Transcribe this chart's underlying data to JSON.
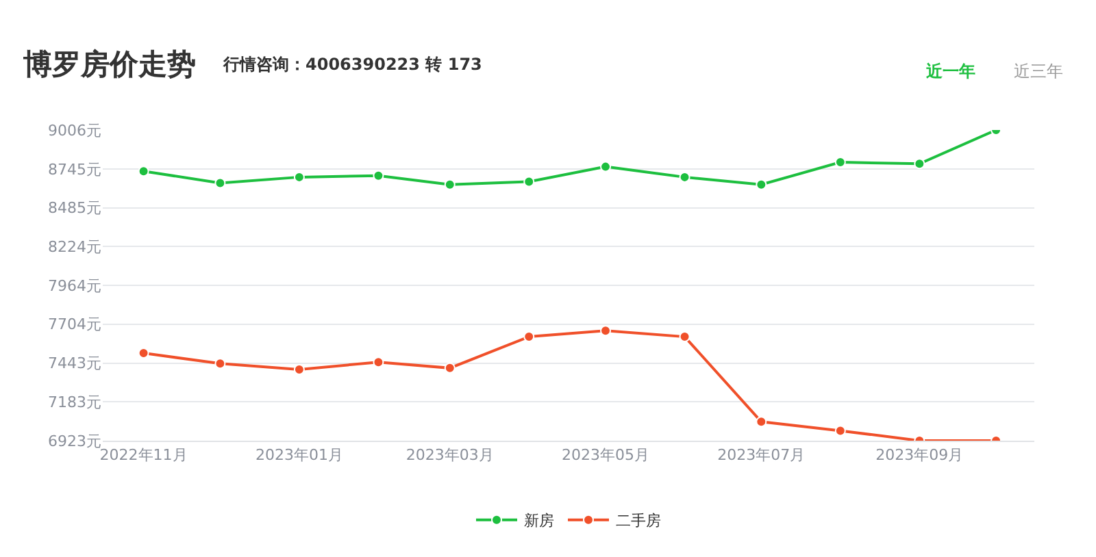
{
  "chart_data": {
    "type": "line",
    "title": "博罗房价走势",
    "subtitle": "行情咨询：4006390223 转 173",
    "annotations": [
      "近一年",
      "近三年"
    ],
    "x": [
      "2022-11",
      "2022-12",
      "2023-01",
      "2023-02",
      "2023-03",
      "2023-04",
      "2023-05",
      "2023-06",
      "2023-07",
      "2023-08",
      "2023-09",
      "2023-10"
    ],
    "series": [
      {
        "name": "新房",
        "color": "#1dbf3f",
        "values": [
          8730,
          8650,
          8690,
          8700,
          8640,
          8660,
          8760,
          8690,
          8640,
          8790,
          8780,
          9006
        ]
      },
      {
        "name": "二手房",
        "color": "#f0502a",
        "values": [
          7510,
          7440,
          7400,
          7450,
          7410,
          7620,
          7660,
          7620,
          7050,
          6990,
          6923,
          6923
        ]
      }
    ],
    "xlim": [
      "2022-10-16",
      "2023-10-16"
    ],
    "xticks": [
      {
        "value": "2022-11",
        "label": "2022年11月"
      },
      {
        "value": "2023-01",
        "label": "2023年01月"
      },
      {
        "value": "2023-03",
        "label": "2023年03月"
      },
      {
        "value": "2023-05",
        "label": "2023年05月"
      },
      {
        "value": "2023-07",
        "label": "2023年07月"
      },
      {
        "value": "2023-09",
        "label": "2023年09月"
      }
    ],
    "ylim": [
      6923,
      9006
    ],
    "yticks": [
      {
        "value": 6923,
        "label": "6923元"
      },
      {
        "value": 7183,
        "label": "7183元"
      },
      {
        "value": 7443,
        "label": "7443元"
      },
      {
        "value": 7704,
        "label": "7704元"
      },
      {
        "value": 7964,
        "label": "7964元"
      },
      {
        "value": 8224,
        "label": "8224元"
      },
      {
        "value": 8485,
        "label": "8485元"
      },
      {
        "value": 8745,
        "label": "8745元"
      },
      {
        "value": 9006,
        "label": "9006元"
      }
    ],
    "grid": "y",
    "legend": "bottom",
    "marker": "circle",
    "line_style": "solid"
  }
}
